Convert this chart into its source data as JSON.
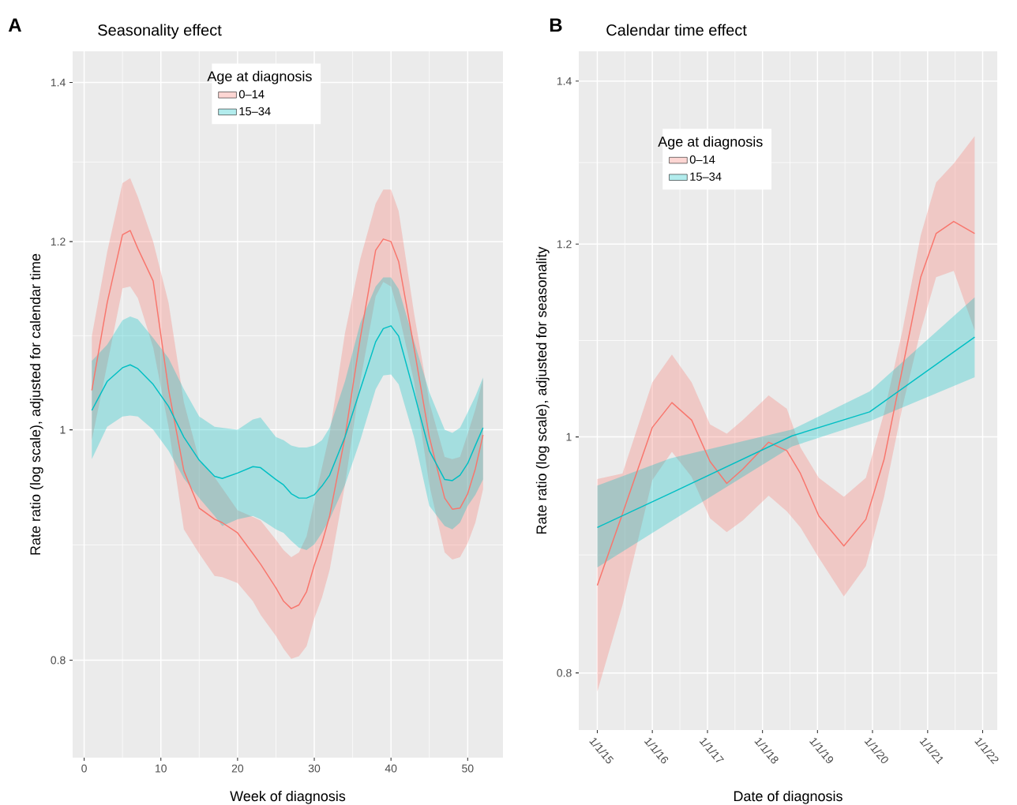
{
  "chart_data": [
    {
      "type": "line",
      "title": "Seasonality effect",
      "xlabel": "Week of diagnosis",
      "ylabel": "Rate ratio (log scale), adjusted for calendar time",
      "legend_title": "Age at diagnosis",
      "annotations": [
        "A"
      ],
      "x": [
        1,
        3,
        5,
        6,
        7,
        9,
        11,
        13,
        15,
        17,
        18,
        20,
        22,
        23,
        25,
        26,
        27,
        28,
        29,
        30,
        31,
        32,
        34,
        36,
        38,
        39,
        40,
        41,
        43,
        45,
        47,
        48,
        49,
        50,
        51,
        52
      ],
      "xlim": [
        -1.5,
        54.6
      ],
      "xticks": [
        0,
        10,
        20,
        30,
        40,
        50
      ],
      "ylim": [
        0.728,
        1.443
      ],
      "yticks": [
        0.8,
        1,
        1.2,
        1.4
      ],
      "log": "y",
      "grid": true,
      "legend": "top",
      "series": [
        {
          "name": "0–14",
          "color": "#f8766d",
          "values": [
            1.039,
            1.131,
            1.208,
            1.213,
            1.192,
            1.155,
            1.04,
            0.961,
            0.927,
            0.917,
            0.914,
            0.905,
            0.887,
            0.878,
            0.858,
            0.847,
            0.841,
            0.844,
            0.855,
            0.877,
            0.896,
            0.92,
            0.993,
            1.093,
            1.19,
            1.203,
            1.2,
            1.177,
            1.083,
            0.993,
            0.936,
            0.926,
            0.927,
            0.94,
            0.963,
            0.995
          ],
          "upper": [
            1.095,
            1.188,
            1.27,
            1.276,
            1.253,
            1.2,
            1.131,
            1.027,
            0.971,
            0.955,
            0.945,
            0.925,
            0.919,
            0.916,
            0.899,
            0.89,
            0.884,
            0.888,
            0.902,
            0.933,
            0.964,
            0.996,
            1.098,
            1.18,
            1.245,
            1.262,
            1.262,
            1.236,
            1.12,
            1.027,
            0.974,
            0.972,
            0.974,
            0.996,
            1.02,
            1.051
          ],
          "lower": [
            0.99,
            1.065,
            1.147,
            1.149,
            1.136,
            1.083,
            1.003,
            0.908,
            0.887,
            0.868,
            0.867,
            0.862,
            0.847,
            0.836,
            0.819,
            0.809,
            0.801,
            0.803,
            0.811,
            0.833,
            0.85,
            0.873,
            0.948,
            1.048,
            1.138,
            1.154,
            1.149,
            1.12,
            1.048,
            0.948,
            0.888,
            0.882,
            0.884,
            0.896,
            0.914,
            0.944
          ]
        },
        {
          "name": "15–34",
          "color": "#00bfc4",
          "values": [
            1.019,
            1.048,
            1.062,
            1.065,
            1.061,
            1.045,
            1.023,
            0.993,
            0.971,
            0.956,
            0.954,
            0.959,
            0.965,
            0.964,
            0.953,
            0.948,
            0.94,
            0.936,
            0.936,
            0.939,
            0.947,
            0.957,
            0.993,
            1.04,
            1.089,
            1.103,
            1.106,
            1.095,
            1.037,
            0.98,
            0.953,
            0.952,
            0.957,
            0.968,
            0.985,
            1.002
          ],
          "upper": [
            1.069,
            1.086,
            1.112,
            1.116,
            1.113,
            1.093,
            1.072,
            1.04,
            1.013,
            1.003,
            1.002,
            1.0,
            1.01,
            1.012,
            0.993,
            0.99,
            0.985,
            0.983,
            0.983,
            0.985,
            0.99,
            1.002,
            1.048,
            1.109,
            1.149,
            1.159,
            1.159,
            1.146,
            1.09,
            1.037,
            1.0,
            0.997,
            1.002,
            1.017,
            1.033,
            1.052
          ],
          "lower": [
            0.972,
            1.003,
            1.013,
            1.014,
            1.013,
            1.0,
            0.98,
            0.954,
            0.936,
            0.92,
            0.911,
            0.917,
            0.92,
            0.917,
            0.908,
            0.905,
            0.898,
            0.892,
            0.89,
            0.895,
            0.905,
            0.917,
            0.948,
            0.99,
            1.04,
            1.054,
            1.055,
            1.045,
            0.993,
            0.929,
            0.911,
            0.908,
            0.914,
            0.929,
            0.939,
            0.953
          ]
        }
      ]
    },
    {
      "type": "line",
      "title": "Calendar time effect",
      "xlabel": "Date of diagnosis",
      "ylabel": "Rate ratio (log scale), adjusted for seasonality",
      "legend_title": "Age at diagnosis",
      "annotations": [
        "B"
      ],
      "xlim": [
        "2014-08-31",
        "2022-04-08"
      ],
      "xticks": [
        {
          "value": "2015-01-01",
          "label": "1/1/15"
        },
        {
          "value": "2016-01-01",
          "label": "1/1/16"
        },
        {
          "value": "2017-01-01",
          "label": "1/1/17"
        },
        {
          "value": "2018-01-01",
          "label": "1/1/18"
        },
        {
          "value": "2019-01-01",
          "label": "1/1/19"
        },
        {
          "value": "2020-01-01",
          "label": "1/1/20"
        },
        {
          "value": "2021-01-01",
          "label": "1/1/21"
        },
        {
          "value": "2022-01-01",
          "label": "1/1/22"
        }
      ],
      "ylim": [
        0.758,
        1.44
      ],
      "yticks": [
        0.8,
        1,
        1.2,
        1.4
      ],
      "log": "y",
      "grid": true,
      "legend": "top left",
      "series": [
        {
          "name": "0–14",
          "color": "#f8766d",
          "x": [
            "2015-01-01",
            "2015-06-17",
            "2016-01-01",
            "2016-05-10",
            "2016-09-18",
            "2017-01-18",
            "2017-05-09",
            "2017-08-23",
            "2018-02-11",
            "2018-06-12",
            "2018-09-10",
            "2019-01-10",
            "2019-06-25",
            "2019-11-18",
            "2020-03-18",
            "2020-07-18",
            "2020-11-16",
            "2021-02-26",
            "2021-06-23",
            "2021-11-09"
          ],
          "values": [
            0.869,
            0.93,
            1.009,
            1.033,
            1.016,
            0.977,
            0.957,
            0.97,
            0.995,
            0.987,
            0.966,
            0.928,
            0.902,
            0.925,
            0.979,
            1.067,
            1.163,
            1.212,
            1.226,
            1.212
          ],
          "upper": [
            0.961,
            0.966,
            1.053,
            1.081,
            1.053,
            1.012,
            1.003,
            1.016,
            1.04,
            1.027,
            0.99,
            0.962,
            0.945,
            0.962,
            1.023,
            1.106,
            1.21,
            1.272,
            1.295,
            1.329
          ],
          "lower": [
            0.786,
            0.853,
            0.96,
            0.986,
            0.963,
            0.926,
            0.914,
            0.924,
            0.946,
            0.932,
            0.918,
            0.892,
            0.86,
            0.885,
            0.945,
            1.029,
            1.106,
            1.163,
            1.17,
            1.106
          ]
        },
        {
          "name": "15–34",
          "color": "#00bfc4",
          "x": [
            "2015-01-01",
            "2016-04-30",
            "2018-07-16",
            "2019-12-13",
            "2021-11-09"
          ],
          "values": [
            0.918,
            0.948,
            1.001,
            1.024,
            1.099
          ],
          "upper": [
            0.955,
            0.98,
            1.007,
            1.044,
            1.141
          ],
          "lower": [
            0.884,
            0.923,
            0.991,
            1.015,
            1.058
          ]
        }
      ]
    }
  ]
}
